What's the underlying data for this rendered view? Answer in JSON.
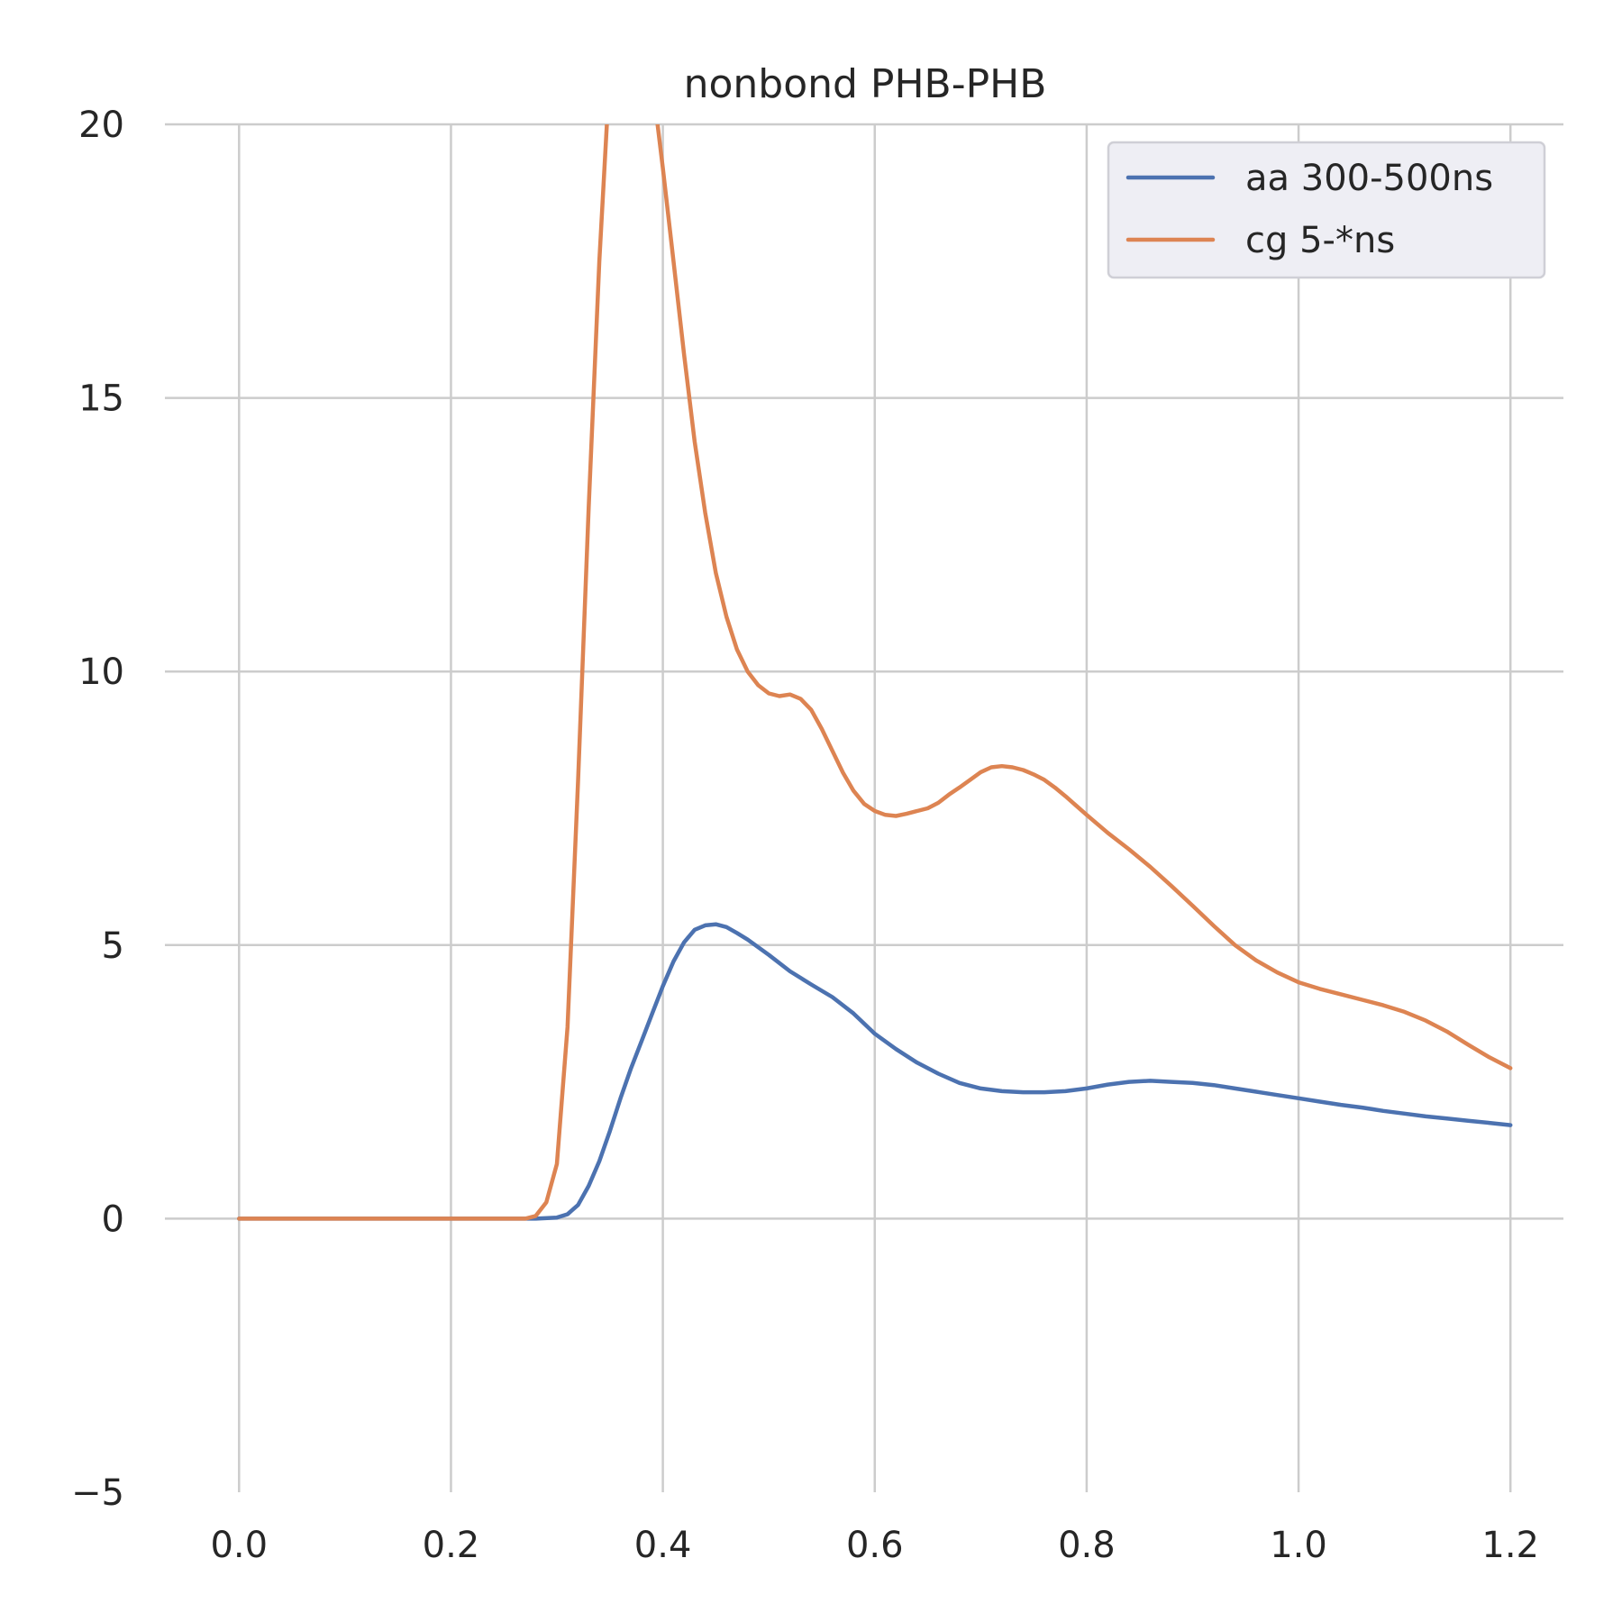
{
  "chart_data": {
    "type": "line",
    "title": "nonbond PHB-PHB",
    "xlabel": "",
    "ylabel": "",
    "xlim": [
      -0.07,
      1.25
    ],
    "ylim": [
      -5,
      20
    ],
    "x_ticks": [
      0.0,
      0.2,
      0.4,
      0.6,
      0.8,
      1.0,
      1.2
    ],
    "x_tick_labels": [
      "0.0",
      "0.2",
      "0.4",
      "0.6",
      "0.8",
      "1.0",
      "1.2"
    ],
    "y_ticks": [
      -5,
      0,
      5,
      10,
      15,
      20
    ],
    "y_tick_labels": [
      "−5",
      "0",
      "5",
      "10",
      "15",
      "20"
    ],
    "grid": true,
    "legend_position": "top-right",
    "series": [
      {
        "name": "aa 300-500ns",
        "color": "#4c72b0",
        "points": [
          [
            0.0,
            0
          ],
          [
            0.1,
            0
          ],
          [
            0.2,
            0
          ],
          [
            0.28,
            0
          ],
          [
            0.3,
            0.02
          ],
          [
            0.31,
            0.08
          ],
          [
            0.32,
            0.25
          ],
          [
            0.33,
            0.6
          ],
          [
            0.34,
            1.05
          ],
          [
            0.35,
            1.6
          ],
          [
            0.36,
            2.2
          ],
          [
            0.37,
            2.75
          ],
          [
            0.38,
            3.25
          ],
          [
            0.39,
            3.75
          ],
          [
            0.4,
            4.25
          ],
          [
            0.41,
            4.7
          ],
          [
            0.42,
            5.05
          ],
          [
            0.43,
            5.28
          ],
          [
            0.44,
            5.36
          ],
          [
            0.45,
            5.38
          ],
          [
            0.46,
            5.33
          ],
          [
            0.47,
            5.22
          ],
          [
            0.48,
            5.1
          ],
          [
            0.5,
            4.82
          ],
          [
            0.52,
            4.52
          ],
          [
            0.54,
            4.28
          ],
          [
            0.56,
            4.05
          ],
          [
            0.58,
            3.75
          ],
          [
            0.6,
            3.38
          ],
          [
            0.62,
            3.1
          ],
          [
            0.64,
            2.85
          ],
          [
            0.66,
            2.65
          ],
          [
            0.68,
            2.48
          ],
          [
            0.7,
            2.38
          ],
          [
            0.72,
            2.33
          ],
          [
            0.74,
            2.31
          ],
          [
            0.76,
            2.31
          ],
          [
            0.78,
            2.33
          ],
          [
            0.8,
            2.38
          ],
          [
            0.82,
            2.45
          ],
          [
            0.84,
            2.5
          ],
          [
            0.86,
            2.52
          ],
          [
            0.88,
            2.5
          ],
          [
            0.9,
            2.48
          ],
          [
            0.92,
            2.44
          ],
          [
            0.94,
            2.38
          ],
          [
            0.96,
            2.32
          ],
          [
            0.98,
            2.26
          ],
          [
            1.0,
            2.2
          ],
          [
            1.02,
            2.14
          ],
          [
            1.04,
            2.08
          ],
          [
            1.06,
            2.03
          ],
          [
            1.08,
            1.97
          ],
          [
            1.1,
            1.92
          ],
          [
            1.12,
            1.87
          ],
          [
            1.14,
            1.83
          ],
          [
            1.16,
            1.79
          ],
          [
            1.18,
            1.75
          ],
          [
            1.2,
            1.71
          ]
        ]
      },
      {
        "name": "cg 5-*ns",
        "color": "#dd8452",
        "points": [
          [
            0.0,
            0
          ],
          [
            0.1,
            0
          ],
          [
            0.2,
            0
          ],
          [
            0.27,
            0
          ],
          [
            0.28,
            0.05
          ],
          [
            0.29,
            0.3
          ],
          [
            0.3,
            1.0
          ],
          [
            0.31,
            3.5
          ],
          [
            0.32,
            8.0
          ],
          [
            0.33,
            13.0
          ],
          [
            0.34,
            17.5
          ],
          [
            0.35,
            21.0
          ],
          [
            0.38,
            23.0
          ],
          [
            0.395,
            20.0
          ],
          [
            0.4,
            19.2
          ],
          [
            0.41,
            17.5
          ],
          [
            0.42,
            15.8
          ],
          [
            0.43,
            14.2
          ],
          [
            0.44,
            12.9
          ],
          [
            0.45,
            11.8
          ],
          [
            0.46,
            11.0
          ],
          [
            0.47,
            10.4
          ],
          [
            0.48,
            10.0
          ],
          [
            0.49,
            9.75
          ],
          [
            0.5,
            9.6
          ],
          [
            0.51,
            9.55
          ],
          [
            0.52,
            9.58
          ],
          [
            0.53,
            9.5
          ],
          [
            0.54,
            9.3
          ],
          [
            0.55,
            8.95
          ],
          [
            0.56,
            8.55
          ],
          [
            0.57,
            8.15
          ],
          [
            0.58,
            7.82
          ],
          [
            0.59,
            7.58
          ],
          [
            0.6,
            7.45
          ],
          [
            0.61,
            7.38
          ],
          [
            0.62,
            7.36
          ],
          [
            0.63,
            7.4
          ],
          [
            0.64,
            7.45
          ],
          [
            0.65,
            7.5
          ],
          [
            0.66,
            7.6
          ],
          [
            0.67,
            7.75
          ],
          [
            0.68,
            7.88
          ],
          [
            0.69,
            8.02
          ],
          [
            0.7,
            8.16
          ],
          [
            0.71,
            8.25
          ],
          [
            0.72,
            8.27
          ],
          [
            0.73,
            8.25
          ],
          [
            0.74,
            8.2
          ],
          [
            0.75,
            8.12
          ],
          [
            0.76,
            8.02
          ],
          [
            0.77,
            7.88
          ],
          [
            0.78,
            7.72
          ],
          [
            0.79,
            7.55
          ],
          [
            0.8,
            7.38
          ],
          [
            0.82,
            7.05
          ],
          [
            0.84,
            6.75
          ],
          [
            0.86,
            6.43
          ],
          [
            0.88,
            6.08
          ],
          [
            0.9,
            5.72
          ],
          [
            0.92,
            5.35
          ],
          [
            0.94,
            5.0
          ],
          [
            0.96,
            4.72
          ],
          [
            0.98,
            4.5
          ],
          [
            1.0,
            4.32
          ],
          [
            1.02,
            4.2
          ],
          [
            1.04,
            4.1
          ],
          [
            1.06,
            4.0
          ],
          [
            1.08,
            3.9
          ],
          [
            1.1,
            3.78
          ],
          [
            1.12,
            3.62
          ],
          [
            1.14,
            3.42
          ],
          [
            1.16,
            3.18
          ],
          [
            1.18,
            2.95
          ],
          [
            1.2,
            2.75
          ]
        ]
      }
    ]
  }
}
